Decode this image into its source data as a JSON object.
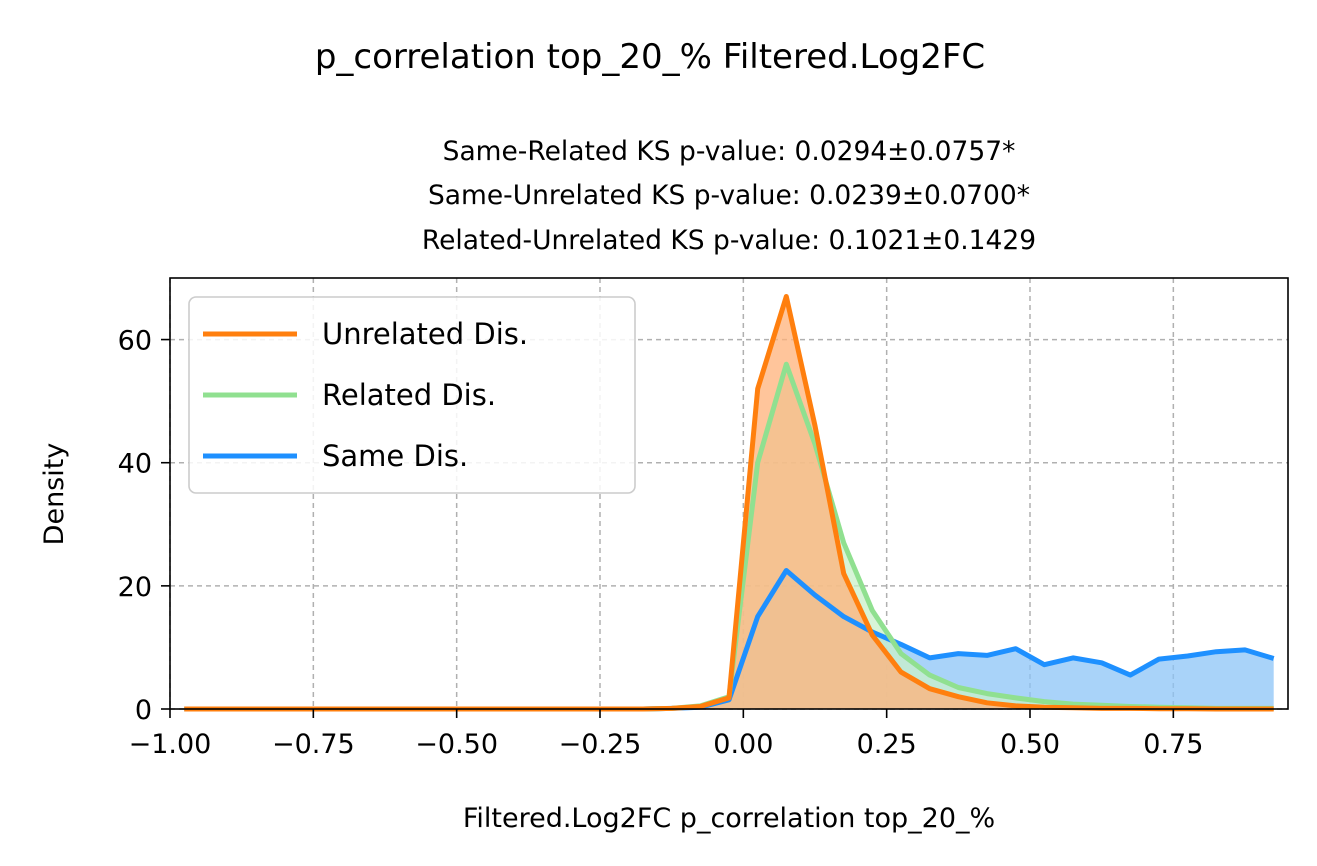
{
  "chart_data": {
    "type": "area",
    "suptitle": "p_correlation top_20_% Filtered.Log2FC",
    "title_lines": [
      "Same-Related KS p-value: 0.0294±0.0757*",
      "Same-Unrelated KS p-value: 0.0239±0.0700*",
      "Related-Unrelated KS p-value: 0.1021±0.1429"
    ],
    "xlabel": "Filtered.Log2FC p_correlation top_20_%",
    "ylabel": "Density",
    "xlim": [
      -1.0,
      0.95
    ],
    "ylim": [
      0,
      70
    ],
    "xticks": [
      -1.0,
      -0.75,
      -0.5,
      -0.25,
      0.0,
      0.25,
      0.5,
      0.75
    ],
    "xtick_labels": [
      "−1.00",
      "−0.75",
      "−0.50",
      "−0.25",
      "0.00",
      "0.25",
      "0.50",
      "0.75"
    ],
    "yticks": [
      0,
      20,
      40,
      60
    ],
    "ytick_labels": [
      "0",
      "20",
      "40",
      "60"
    ],
    "grid": true,
    "legend_position": "top-left",
    "series": [
      {
        "name": "Unrelated Dis.",
        "color": "#ff7f0e",
        "fill": "#ffb27a",
        "x": [
          -0.975,
          -0.925,
          -0.875,
          -0.825,
          -0.775,
          -0.725,
          -0.675,
          -0.625,
          -0.575,
          -0.525,
          -0.475,
          -0.425,
          -0.375,
          -0.325,
          -0.275,
          -0.225,
          -0.175,
          -0.125,
          -0.075,
          -0.025,
          0.025,
          0.075,
          0.125,
          0.175,
          0.225,
          0.275,
          0.325,
          0.375,
          0.425,
          0.475,
          0.525,
          0.575,
          0.625,
          0.675,
          0.725,
          0.775,
          0.825,
          0.875,
          0.925
        ],
        "y": [
          0,
          0,
          0,
          0,
          0,
          0,
          0,
          0,
          0,
          0,
          0,
          0,
          0,
          0,
          0,
          0,
          0,
          0.1,
          0.4,
          1.8,
          52,
          67,
          46,
          22,
          12,
          6,
          3.3,
          2.0,
          1.0,
          0.5,
          0.3,
          0.2,
          0.1,
          0.1,
          0.05,
          0.05,
          0,
          0,
          0
        ]
      },
      {
        "name": "Related Dis.",
        "color": "#90e090",
        "fill": "#c9f0c9",
        "x": [
          -0.975,
          -0.925,
          -0.875,
          -0.825,
          -0.775,
          -0.725,
          -0.675,
          -0.625,
          -0.575,
          -0.525,
          -0.475,
          -0.425,
          -0.375,
          -0.325,
          -0.275,
          -0.225,
          -0.175,
          -0.125,
          -0.075,
          -0.025,
          0.025,
          0.075,
          0.125,
          0.175,
          0.225,
          0.275,
          0.325,
          0.375,
          0.425,
          0.475,
          0.525,
          0.575,
          0.625,
          0.675,
          0.725,
          0.775,
          0.825,
          0.875,
          0.925
        ],
        "y": [
          0,
          0,
          0,
          0,
          0,
          0,
          0,
          0,
          0,
          0,
          0,
          0,
          0,
          0,
          0,
          0,
          0,
          0.1,
          0.5,
          2.0,
          40,
          56,
          43,
          27,
          16,
          9,
          5.5,
          3.5,
          2.5,
          1.8,
          1.2,
          0.8,
          0.6,
          0.4,
          0.3,
          0.2,
          0.1,
          0.1,
          0.1
        ]
      },
      {
        "name": "Same Dis.",
        "color": "#1e90ff",
        "fill": "#8cc4f7",
        "x": [
          -0.975,
          -0.925,
          -0.875,
          -0.825,
          -0.775,
          -0.725,
          -0.675,
          -0.625,
          -0.575,
          -0.525,
          -0.475,
          -0.425,
          -0.375,
          -0.325,
          -0.275,
          -0.225,
          -0.175,
          -0.125,
          -0.075,
          -0.025,
          0.025,
          0.075,
          0.125,
          0.175,
          0.225,
          0.275,
          0.325,
          0.375,
          0.425,
          0.475,
          0.525,
          0.575,
          0.625,
          0.675,
          0.725,
          0.775,
          0.825,
          0.875,
          0.925
        ],
        "y": [
          0,
          0,
          0,
          0,
          0,
          0,
          0,
          0,
          0,
          0,
          0,
          0,
          0,
          0,
          0,
          0,
          0,
          0.1,
          0.3,
          1.5,
          15,
          22.5,
          18.5,
          15,
          12.5,
          10.5,
          8.3,
          9,
          8.7,
          9.8,
          7.2,
          8.3,
          7.5,
          5.5,
          8.1,
          8.6,
          9.3,
          9.6,
          8.2
        ]
      }
    ]
  }
}
